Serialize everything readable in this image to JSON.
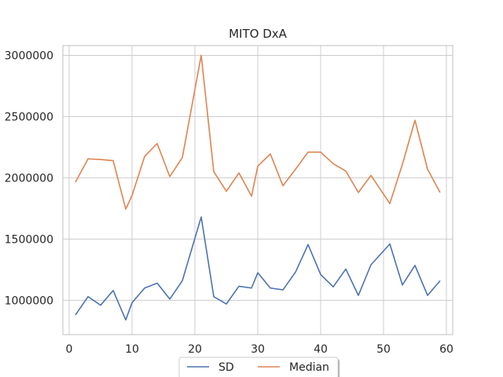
{
  "chart_data": {
    "type": "line",
    "title": "MITO DxA",
    "xlabel": "",
    "ylabel": "",
    "xlim": [
      -1,
      61
    ],
    "ylim": [
      720000,
      3080000
    ],
    "xticks": [
      0,
      10,
      20,
      30,
      40,
      50,
      60
    ],
    "yticks": [
      1000000,
      1500000,
      2000000,
      2500000,
      3000000
    ],
    "grid": true,
    "legend_position": "bottom-center",
    "x": [
      1,
      3,
      5,
      7,
      9,
      10,
      12,
      14,
      16,
      18,
      21,
      23,
      25,
      27,
      29,
      30,
      32,
      34,
      36,
      38,
      40,
      42,
      44,
      46,
      48,
      51,
      53,
      55,
      57,
      59
    ],
    "series": [
      {
        "name": "SD",
        "color": "#4c72b0",
        "values": [
          880000,
          1030000,
          960000,
          1080000,
          840000,
          980000,
          1100000,
          1140000,
          1010000,
          1160000,
          1680000,
          1030000,
          970000,
          1115000,
          1100000,
          1225000,
          1100000,
          1085000,
          1230000,
          1455000,
          1210000,
          1110000,
          1255000,
          1040000,
          1290000,
          1460000,
          1125000,
          1285000,
          1040000,
          1160000
        ]
      },
      {
        "name": "Median",
        "color": "#dd8452",
        "values": [
          1965000,
          2155000,
          2150000,
          2140000,
          1745000,
          1855000,
          2175000,
          2280000,
          2010000,
          2165000,
          3000000,
          2050000,
          1890000,
          2040000,
          1850000,
          2095000,
          2195000,
          1935000,
          2070000,
          2210000,
          2210000,
          2115000,
          2055000,
          1880000,
          2020000,
          1790000,
          2110000,
          2470000,
          2070000,
          1880000
        ]
      }
    ]
  }
}
